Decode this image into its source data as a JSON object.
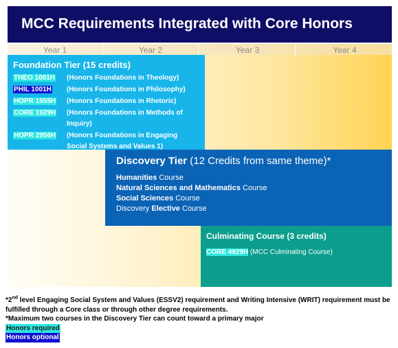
{
  "header": {
    "title": "MCC Requirements Integrated with Core Honors"
  },
  "years": [
    "Year 1",
    "Year 2",
    "Year 3",
    "Year 4"
  ],
  "foundation": {
    "title": "Foundation Tier (15 credits)",
    "courses": [
      {
        "code": "THEO 1001H",
        "desc": "(Honors Foundations in Theology)",
        "status": "required"
      },
      {
        "code": "PHIL 1001H",
        "desc": "(Honors Foundations in Philosophy)",
        "status": "optional"
      },
      {
        "code": "HOPR 1955H",
        "desc": "(Honors Foundations in Rhetoric)",
        "status": "required"
      },
      {
        "code": "CORE 1929H",
        "desc": "(Honors Foundations in Methods of Inquiry)",
        "status": "required"
      },
      {
        "code": "HOPR 2956H",
        "desc": "(Honors Foundations in Engaging Social Systems and Values 1)",
        "status": "required"
      }
    ]
  },
  "discovery": {
    "title_bold": "Discovery Tier",
    "title_rest": " (12 Credits from same theme)*",
    "items": [
      {
        "bold": "Humanities",
        "rest": " Course"
      },
      {
        "bold": "Natural Sciences and Mathematics",
        "rest": " Course"
      },
      {
        "bold": "Social Sciences",
        "rest": " Course"
      },
      {
        "prefix": "Discovery ",
        "bold": "Elective",
        "rest": " Course"
      }
    ]
  },
  "culminating": {
    "title": "Culminating Course (3 credits)",
    "code": "CORE 4929H",
    "desc": " (MCC Culminating Course)"
  },
  "footnotes": {
    "note1_a": "*2",
    "note1_sup": "nd",
    "note1_b": " level Engaging Social System and Values (ESSV2) requirement and Writing Intensive (WRIT) requirement must be fulfilled through a Core class or through other degree requirements.",
    "note2": "*Maximum two courses in the Discovery Tier can count toward a primary major",
    "legend_required": "Honors required",
    "legend_optional": "Honors optional"
  },
  "colors": {
    "header_bg": "#0e0e66",
    "foundation_bg": "#17b5ea",
    "discovery_bg": "#0b63b5",
    "culminating_bg": "#0c9e8d",
    "honors_required": "#2ee8e0",
    "honors_optional": "#1010d0"
  }
}
